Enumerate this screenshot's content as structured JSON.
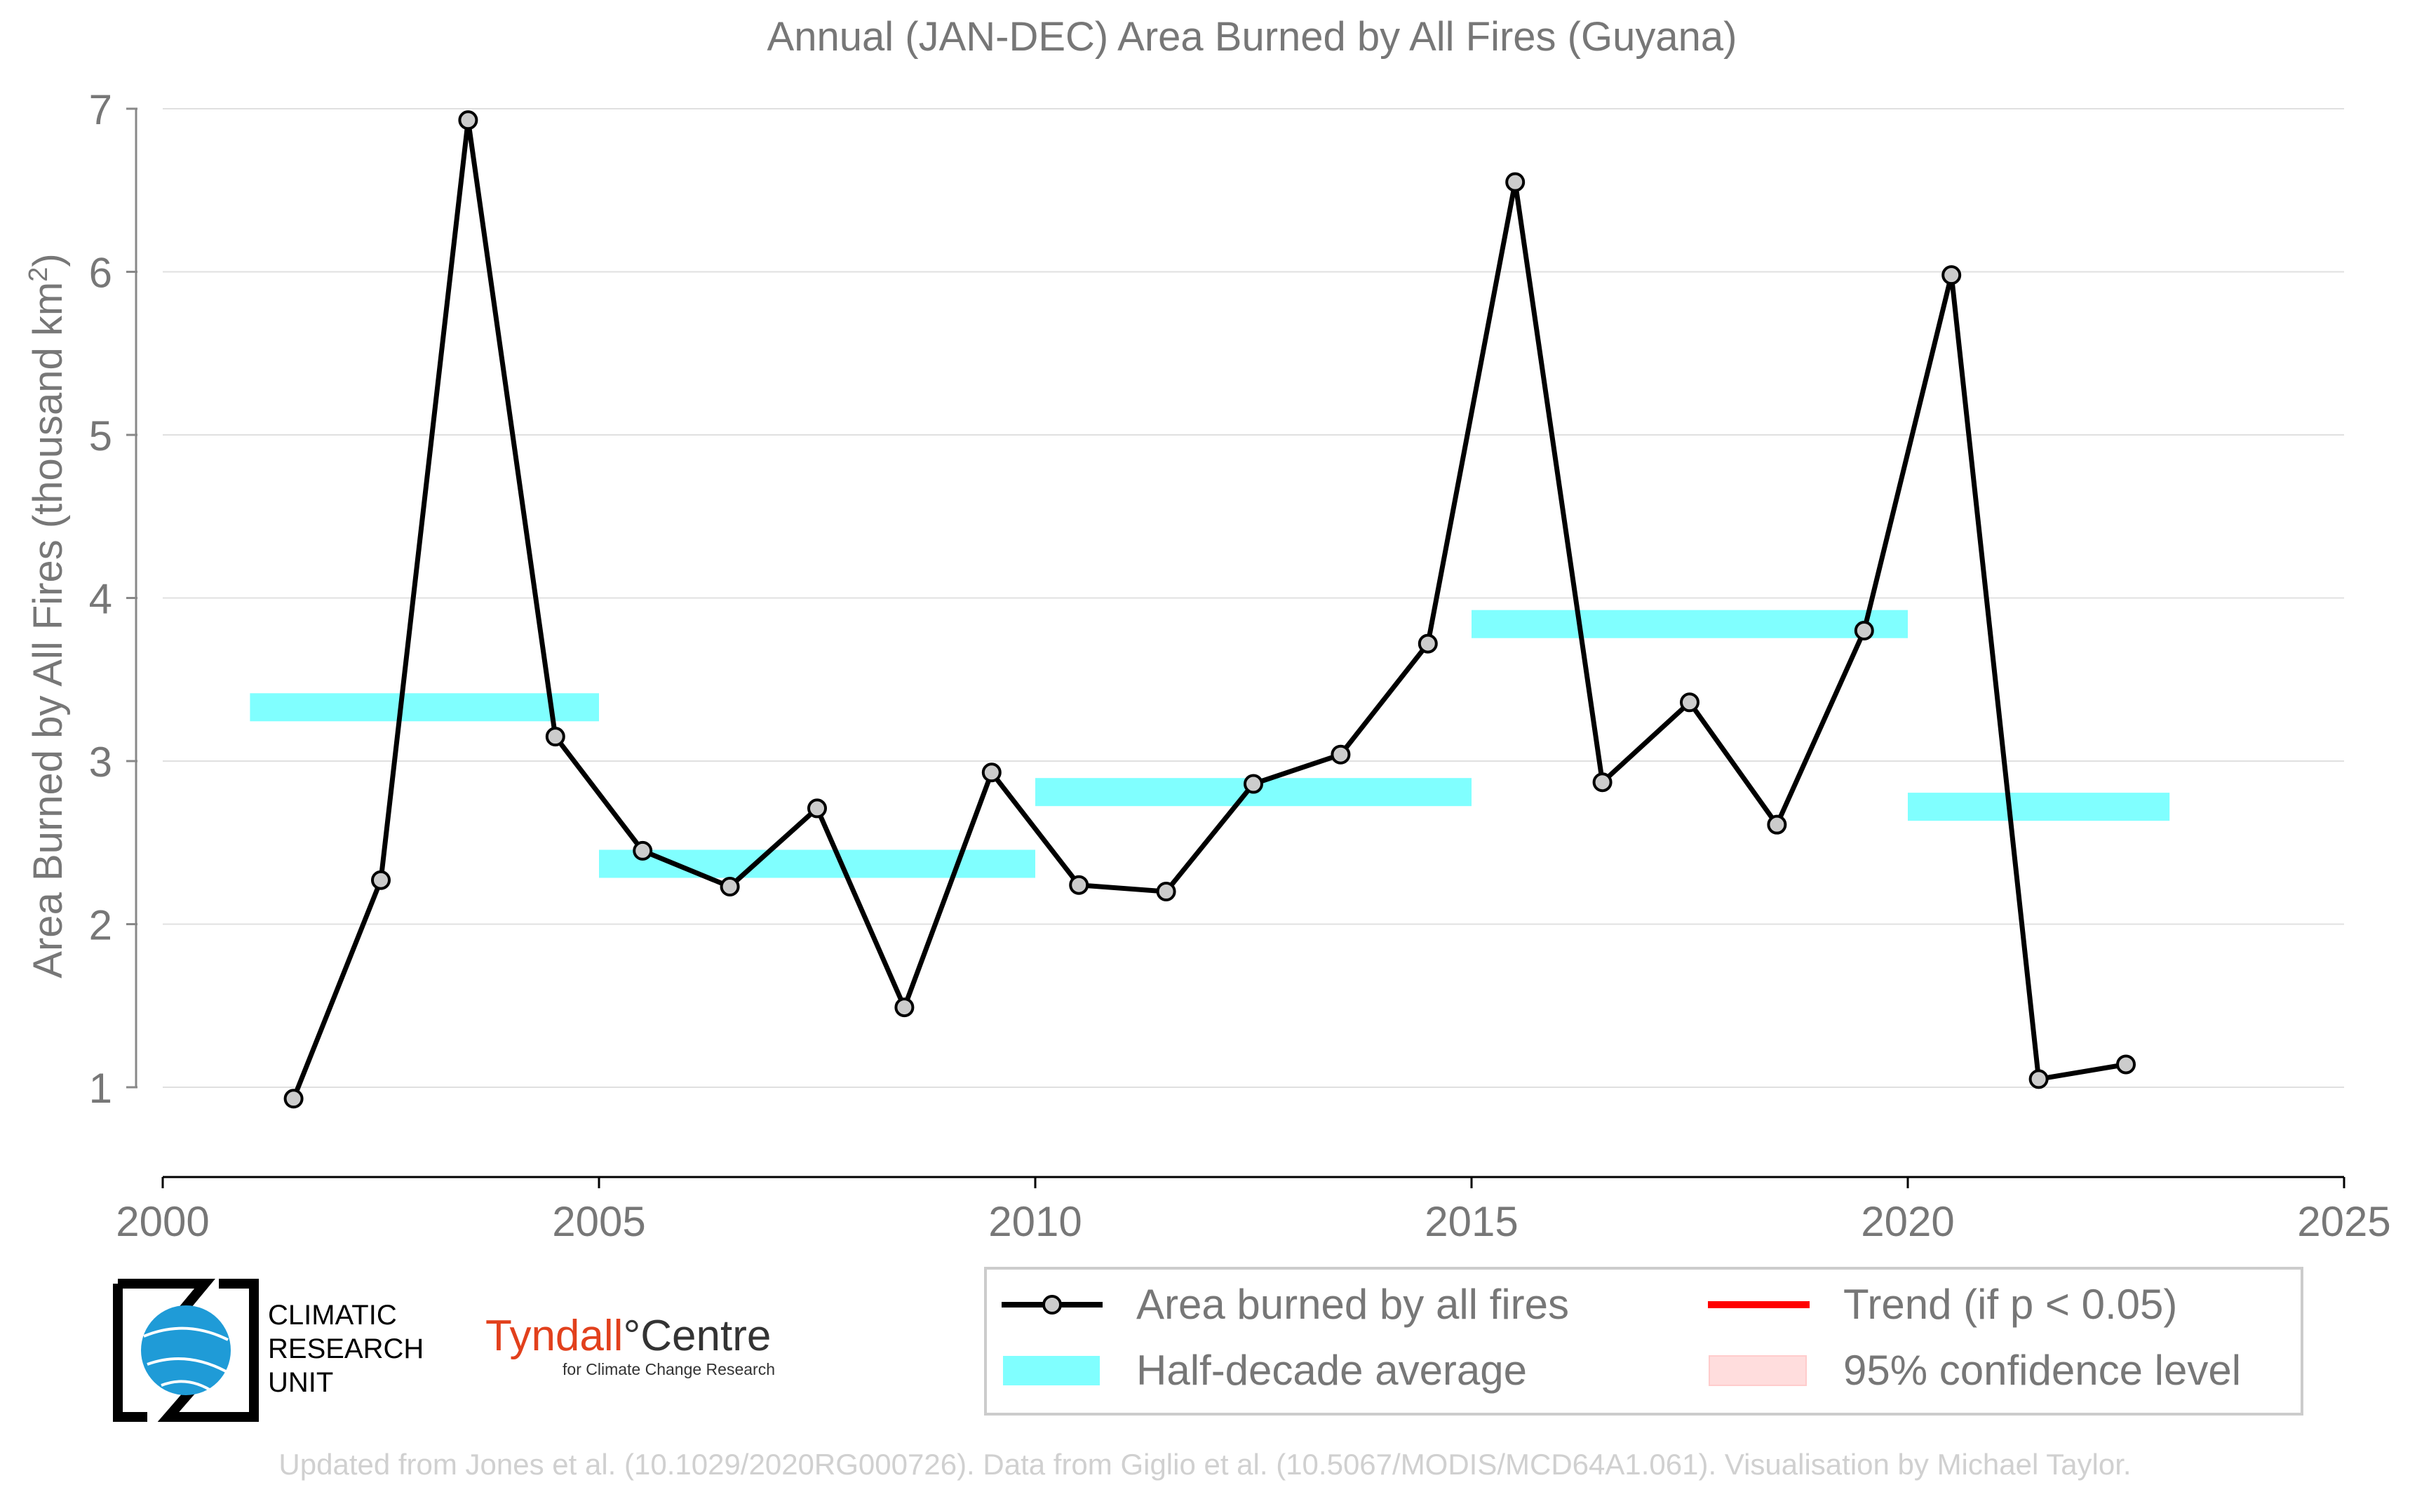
{
  "chart_data": {
    "type": "line",
    "title": "Annual (JAN-DEC) Area Burned by All Fires (Guyana)",
    "ylabel": "Area Burned by All Fires (thousand km²)",
    "xlabel": "",
    "xlim": [
      2000,
      2025
    ],
    "ylim": [
      0.5,
      7
    ],
    "xticks": [
      2000,
      2005,
      2010,
      2015,
      2020,
      2025
    ],
    "yticks": [
      1,
      2,
      3,
      4,
      5,
      6,
      7
    ],
    "grid": "horizontal",
    "legend_position": "bottom-right",
    "series": [
      {
        "name": "Area burned by all fires",
        "color": "#000000",
        "marker_color": "#cccccc",
        "points": [
          {
            "x": 2001.5,
            "y": 0.93
          },
          {
            "x": 2002.5,
            "y": 2.27
          },
          {
            "x": 2003.5,
            "y": 6.93
          },
          {
            "x": 2004.5,
            "y": 3.15
          },
          {
            "x": 2005.5,
            "y": 2.45
          },
          {
            "x": 2006.5,
            "y": 2.23
          },
          {
            "x": 2007.5,
            "y": 2.71
          },
          {
            "x": 2008.5,
            "y": 1.49
          },
          {
            "x": 2009.5,
            "y": 2.93
          },
          {
            "x": 2010.5,
            "y": 2.24
          },
          {
            "x": 2011.5,
            "y": 2.2
          },
          {
            "x": 2012.5,
            "y": 2.86
          },
          {
            "x": 2013.5,
            "y": 3.04
          },
          {
            "x": 2014.5,
            "y": 3.72
          },
          {
            "x": 2015.5,
            "y": 6.55
          },
          {
            "x": 2016.5,
            "y": 2.87
          },
          {
            "x": 2017.5,
            "y": 3.36
          },
          {
            "x": 2018.5,
            "y": 2.61
          },
          {
            "x": 2019.5,
            "y": 3.8
          },
          {
            "x": 2020.5,
            "y": 5.98
          },
          {
            "x": 2021.5,
            "y": 1.05
          },
          {
            "x": 2022.5,
            "y": 1.14
          }
        ]
      }
    ],
    "half_decade_average": {
      "name": "Half-decade average",
      "color": "#80ffff",
      "segments": [
        {
          "x_start": 2001,
          "x_end": 2005,
          "y": 3.33
        },
        {
          "x_start": 2005,
          "x_end": 2010,
          "y": 2.37
        },
        {
          "x_start": 2010,
          "x_end": 2015,
          "y": 2.81
        },
        {
          "x_start": 2015,
          "x_end": 2020,
          "y": 3.84
        },
        {
          "x_start": 2020,
          "x_end": 2023,
          "y": 2.72
        }
      ]
    },
    "legend": [
      {
        "label": "Area burned by all fires",
        "kind": "line-marker",
        "color": "#000000"
      },
      {
        "label": "Trend (if p < 0.05)",
        "kind": "line",
        "color": "#ff0000"
      },
      {
        "label": "Half-decade average",
        "kind": "band",
        "color": "#80ffff"
      },
      {
        "label": "95% confidence level",
        "kind": "band",
        "color": "#ffdddd"
      }
    ]
  },
  "logos": {
    "cru_lines": [
      "CLIMATIC",
      "RESEARCH",
      "UNIT"
    ],
    "tyndall_main": "Tyndall",
    "tyndall_degree": "°",
    "tyndall_centre": "Centre",
    "tyndall_sub": "for Climate Change Research"
  },
  "footer": {
    "credit": "Updated from Jones et al. (10.1029/2020RG000726). Data from Giglio et al. (10.5067/MODIS/MCD64A1.061). Visualisation by Michael Taylor."
  },
  "colors": {
    "text_grey": "#777777",
    "axis_grey": "#888888",
    "grid": "#e0e0e0",
    "footer_grey": "#d0d0d0",
    "cru_blue": "#1f9bd7",
    "tyndall_red": "#e2401c"
  }
}
